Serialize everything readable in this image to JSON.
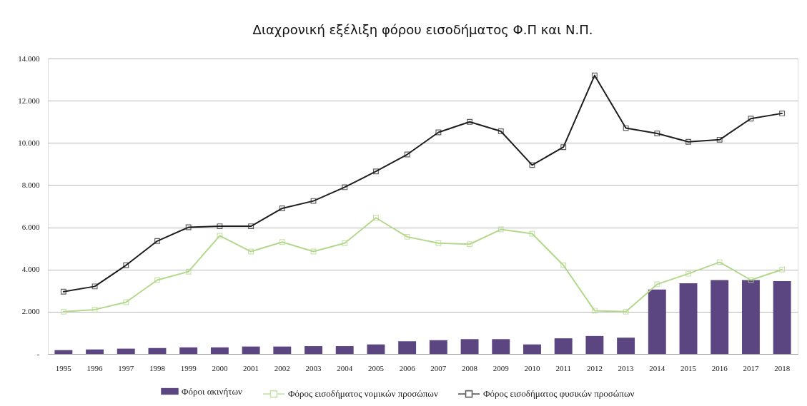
{
  "chart_data": {
    "type": "line",
    "title": "Διαχρονική εξέλιξη φόρου εισοδήματος Φ.Π και Ν.Π.",
    "categories": [
      "1995",
      "1996",
      "1997",
      "1998",
      "1999",
      "2000",
      "2001",
      "2002",
      "2003",
      "2004",
      "2005",
      "2006",
      "2007",
      "2008",
      "2009",
      "2010",
      "2011",
      "2012",
      "2013",
      "2014",
      "2015",
      "2016",
      "2017",
      "2018"
    ],
    "series": [
      {
        "name": "Φόροι ακινήτων",
        "type": "bar",
        "color": "#5b4682",
        "values": [
          180,
          210,
          250,
          280,
          310,
          310,
          350,
          350,
          370,
          370,
          450,
          600,
          650,
          700,
          700,
          450,
          740,
          850,
          770,
          3050,
          3350,
          3500,
          3500,
          3450
        ]
      },
      {
        "name": "Φόρος εισοδήματος νομικών προσώπων",
        "color": "#b3d88c",
        "values": [
          2000,
          2100,
          2450,
          3500,
          3900,
          5600,
          4850,
          5300,
          4850,
          5250,
          6450,
          5550,
          5250,
          5200,
          5900,
          5700,
          4200,
          2050,
          2000,
          3300,
          3800,
          4350,
          3500,
          4000
        ]
      },
      {
        "name": "Φόρος εισοδήματος φυσικών προσώπων",
        "color": "#1e1e1e",
        "values": [
          2950,
          3200,
          4200,
          5350,
          6000,
          6050,
          6050,
          6900,
          7250,
          7900,
          8650,
          9450,
          10500,
          11000,
          10550,
          8950,
          9800,
          13200,
          10700,
          10450,
          10050,
          10150,
          11150,
          11400
        ]
      }
    ],
    "ylim": [
      0,
      14000
    ],
    "yticks": [
      {
        "value": 0,
        "label": "-"
      },
      {
        "value": 2000,
        "label": "2.000"
      },
      {
        "value": 4000,
        "label": "4.000"
      },
      {
        "value": 6000,
        "label": "6.000"
      },
      {
        "value": 8000,
        "label": "8.000"
      },
      {
        "value": 10000,
        "label": "10.000"
      },
      {
        "value": 12000,
        "label": "12.000"
      },
      {
        "value": 14000,
        "label": "14.000"
      }
    ],
    "grid": "y",
    "legend": "bottom",
    "marker": "square"
  }
}
